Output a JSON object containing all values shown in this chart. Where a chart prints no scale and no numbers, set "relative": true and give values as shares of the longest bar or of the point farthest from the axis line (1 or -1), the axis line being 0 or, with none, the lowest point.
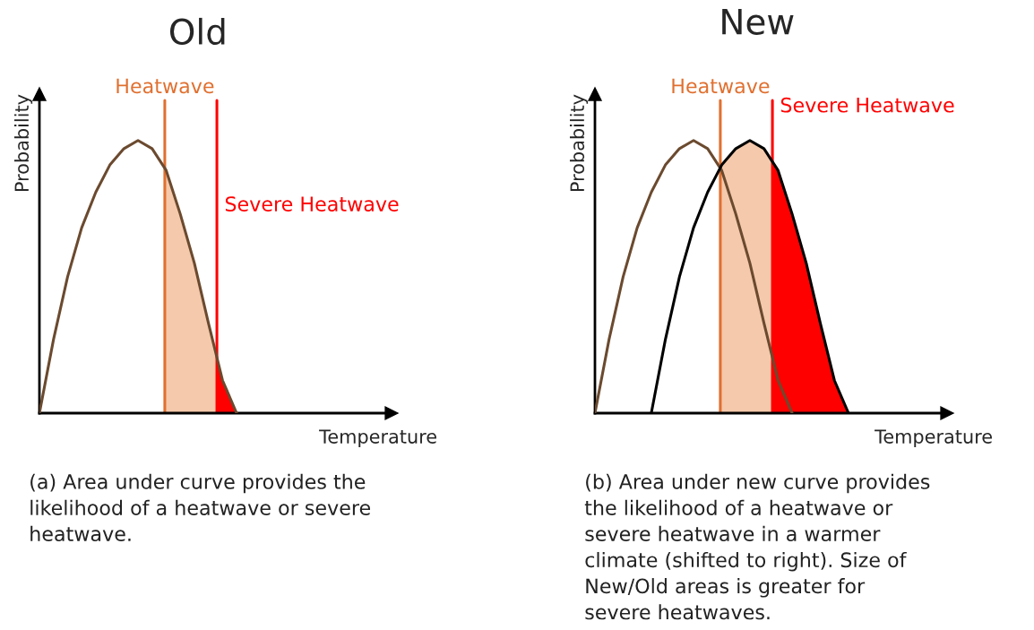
{
  "chart_data": [
    {
      "type": "line",
      "title": "Old",
      "xlabel": "Temperature",
      "ylabel": "Probability",
      "relative": true,
      "categories": [
        null,
        null,
        null,
        null,
        null,
        null,
        null,
        null,
        null,
        null,
        null,
        null,
        null,
        null,
        null,
        null,
        null,
        null,
        null,
        null,
        null,
        null,
        null,
        null,
        null,
        null
      ],
      "series": [
        {
          "color": "#6b4a2f",
          "values": [
            0,
            0.27,
            0.5,
            0.68,
            0.81,
            0.91,
            0.97,
            1.0,
            0.97,
            0.89,
            0.73,
            0.55,
            0.33,
            0.12,
            0,
            null,
            null,
            null,
            null,
            null,
            null,
            null,
            null,
            null,
            null,
            null
          ]
        }
      ],
      "annotations": [
        "Heatwave",
        "Severe Heatwave",
        "(a) Area under curve provides the\nlikelihood of a heatwave or severe\nheatwave."
      ]
    },
    {
      "type": "line",
      "title": "New",
      "xlabel": "Temperature",
      "ylabel": "Probability",
      "relative": true,
      "categories": [
        null,
        null,
        null,
        null,
        null,
        null,
        null,
        null,
        null,
        null,
        null,
        null,
        null,
        null,
        null,
        null,
        null,
        null,
        null,
        null,
        null,
        null,
        null,
        null,
        null,
        null
      ],
      "series": [
        {
          "color": "#6b4a2f",
          "values": [
            0,
            0.27,
            0.5,
            0.68,
            0.81,
            0.91,
            0.97,
            1.0,
            0.97,
            0.89,
            0.73,
            0.55,
            0.33,
            0.12,
            0,
            null,
            null,
            null,
            null,
            null,
            null,
            null,
            null,
            null,
            null,
            null
          ]
        },
        {
          "color": "#000000",
          "values": [
            null,
            null,
            null,
            null,
            0,
            0.27,
            0.5,
            0.68,
            0.81,
            0.91,
            0.97,
            1.0,
            0.97,
            0.89,
            0.73,
            0.55,
            0.33,
            0.12,
            0,
            null,
            null,
            null,
            null,
            null,
            null,
            null
          ]
        }
      ],
      "annotations": [
        "Heatwave",
        "Severe Heatwave",
        "(b) Area under new curve provides\nthe likelihood of a heatwave or\nsevere heatwave in a warmer\nclimate (shifted to right). Size of\nNew/Old areas is greater for\nsevere heatwaves."
      ]
    }
  ]
}
